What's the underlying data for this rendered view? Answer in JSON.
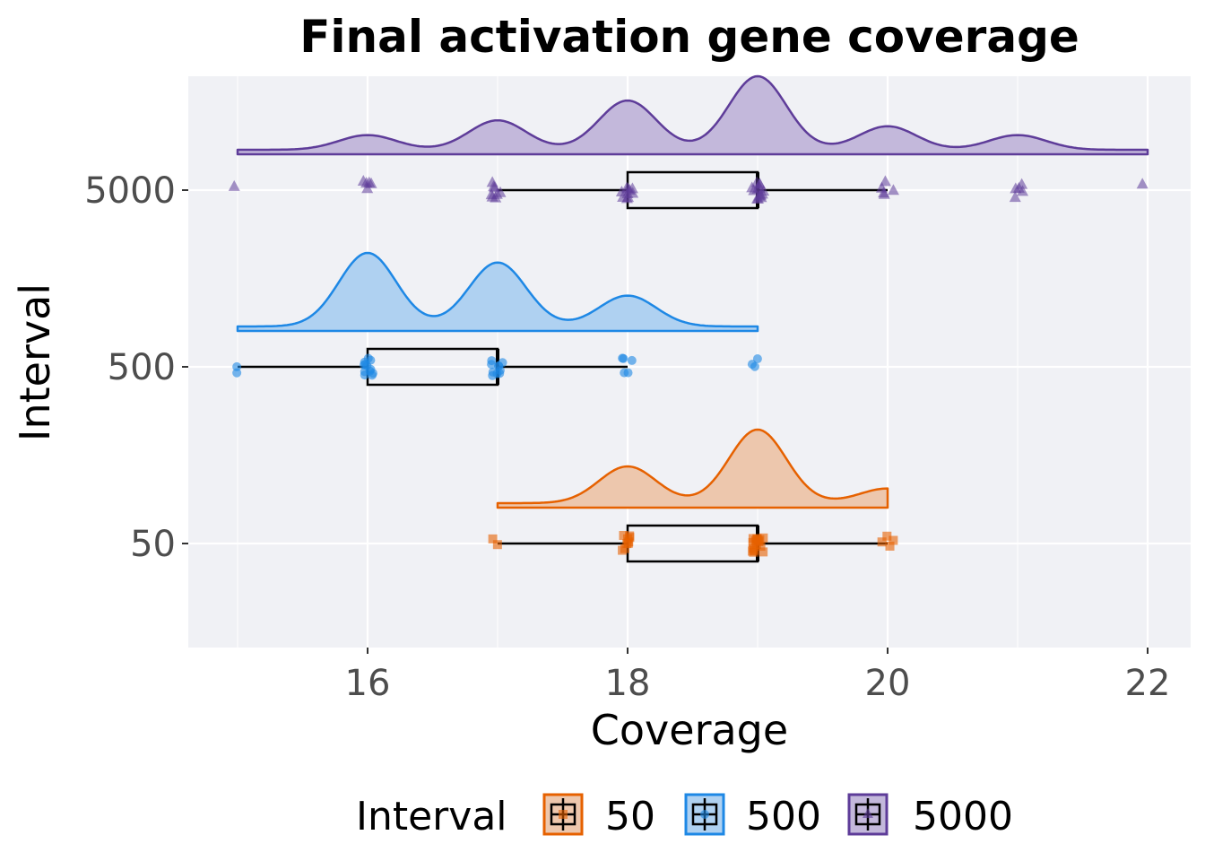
{
  "chart_data": {
    "type": "raincloud",
    "title": "Final activation gene coverage",
    "xlabel": "Coverage",
    "ylabel": "Interval",
    "xlim": [
      14.65,
      22.5
    ],
    "x_ticks": [
      16,
      18,
      20,
      22
    ],
    "x_tick_labels": [
      "16",
      "18",
      "20",
      "22"
    ],
    "grid": true,
    "legend": {
      "title": "Interval",
      "placement": "bottom",
      "entries": [
        "50",
        "500",
        "5000"
      ]
    },
    "series": [
      {
        "name": "50",
        "color": "#E66100",
        "fill": "#EDC7AD",
        "marker": "square",
        "box": {
          "min": 17,
          "q1": 18,
          "median": 19,
          "q3": 19,
          "max": 20
        },
        "density_range": [
          17,
          20
        ],
        "density_peaks": [
          {
            "x": 18,
            "rel": 0.5
          },
          {
            "x": 19,
            "rel": 1.0
          },
          {
            "x": 20,
            "rel": 0.2
          }
        ],
        "points": [
          {
            "x": 17,
            "n": 2
          },
          {
            "x": 18,
            "n": 9
          },
          {
            "x": 19,
            "n": 16
          },
          {
            "x": 20,
            "n": 4
          }
        ]
      },
      {
        "name": "500",
        "color": "#1E88E5",
        "fill": "#AFD1F1",
        "marker": "circle",
        "box": {
          "min": 15,
          "q1": 16,
          "median": 17,
          "q3": 17,
          "max": 18
        },
        "density_range": [
          15,
          19
        ],
        "density_peaks": [
          {
            "x": 16,
            "rel": 1.0
          },
          {
            "x": 17,
            "rel": 0.87
          },
          {
            "x": 18,
            "rel": 0.42
          }
        ],
        "points": [
          {
            "x": 15,
            "n": 2
          },
          {
            "x": 16,
            "n": 12
          },
          {
            "x": 17,
            "n": 10
          },
          {
            "x": 18,
            "n": 5
          },
          {
            "x": 19,
            "n": 3
          }
        ]
      },
      {
        "name": "5000",
        "color": "#5E3C99",
        "fill": "#C3B8DB",
        "marker": "triangle",
        "box": {
          "min": 17,
          "q1": 18,
          "median": 19,
          "q3": 19,
          "max": 20
        },
        "density_range": [
          15,
          22
        ],
        "density_peaks": [
          {
            "x": 16,
            "rel": 0.2
          },
          {
            "x": 17,
            "rel": 0.4
          },
          {
            "x": 18,
            "rel": 0.67
          },
          {
            "x": 19,
            "rel": 1.0
          },
          {
            "x": 20,
            "rel": 0.32
          },
          {
            "x": 21,
            "rel": 0.2
          }
        ],
        "points": [
          {
            "x": 15,
            "n": 1
          },
          {
            "x": 16,
            "n": 5
          },
          {
            "x": 17,
            "n": 8
          },
          {
            "x": 18,
            "n": 10
          },
          {
            "x": 19,
            "n": 14
          },
          {
            "x": 20,
            "n": 5
          },
          {
            "x": 21,
            "n": 5
          },
          {
            "x": 22,
            "n": 1
          }
        ]
      }
    ]
  }
}
